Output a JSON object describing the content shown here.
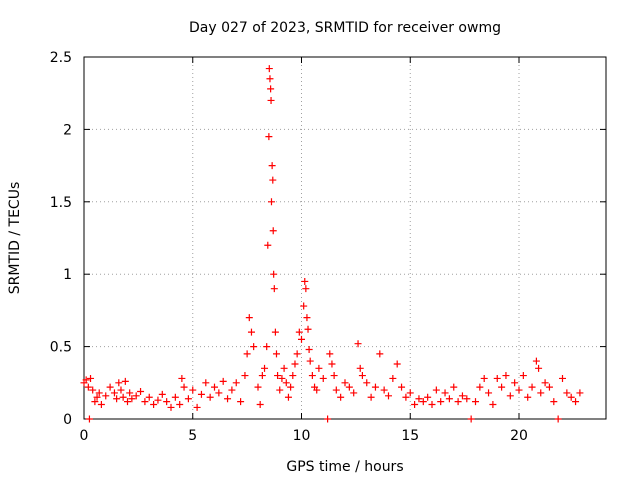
{
  "chart_data": {
    "type": "scatter",
    "title": "Day 027 of 2023, SRMTID for receiver owmg",
    "xlabel": "GPS time / hours",
    "ylabel": "SRMTID / TECUs",
    "xlim": [
      0,
      24
    ],
    "ylim": [
      0,
      2.5
    ],
    "xticks": [
      0,
      5,
      10,
      15,
      20
    ],
    "xtick_labels": [
      "0",
      "5",
      "10",
      "15",
      "20"
    ],
    "yticks": [
      0,
      0.5,
      1,
      1.5,
      2,
      2.5
    ],
    "ytick_labels": [
      "0",
      "0.5",
      "1",
      "1.5",
      "2",
      "2.5"
    ],
    "grid": true,
    "marker": "+",
    "series": [
      {
        "name": "SRMTID",
        "color": "#ff0000",
        "x": [
          0.0,
          0.1,
          0.2,
          0.25,
          0.3,
          0.4,
          0.5,
          0.6,
          0.7,
          0.8,
          1.0,
          1.2,
          1.4,
          1.5,
          1.6,
          1.7,
          1.8,
          1.9,
          2.0,
          2.1,
          2.2,
          2.4,
          2.6,
          2.8,
          3.0,
          3.2,
          3.4,
          3.6,
          3.8,
          4.0,
          4.2,
          4.4,
          4.5,
          4.6,
          4.8,
          5.0,
          5.2,
          5.4,
          5.6,
          5.8,
          6.0,
          6.2,
          6.4,
          6.6,
          6.8,
          7.0,
          7.2,
          7.4,
          7.5,
          7.6,
          7.7,
          7.8,
          8.0,
          8.1,
          8.2,
          8.3,
          8.4,
          8.45,
          8.5,
          8.52,
          8.55,
          8.58,
          8.6,
          8.62,
          8.65,
          8.68,
          8.7,
          8.72,
          8.75,
          8.8,
          8.85,
          8.9,
          9.0,
          9.1,
          9.2,
          9.3,
          9.4,
          9.5,
          9.6,
          9.7,
          9.8,
          9.9,
          10.0,
          10.1,
          10.15,
          10.2,
          10.25,
          10.3,
          10.35,
          10.4,
          10.5,
          10.6,
          10.7,
          10.8,
          11.0,
          11.2,
          11.3,
          11.4,
          11.5,
          11.6,
          11.8,
          12.0,
          12.2,
          12.4,
          12.6,
          12.7,
          12.8,
          13.0,
          13.2,
          13.4,
          13.6,
          13.8,
          14.0,
          14.2,
          14.4,
          14.6,
          14.8,
          15.0,
          15.2,
          15.4,
          15.6,
          15.8,
          16.0,
          16.2,
          16.4,
          16.6,
          16.8,
          17.0,
          17.2,
          17.4,
          17.6,
          17.8,
          18.0,
          18.2,
          18.4,
          18.6,
          18.8,
          19.0,
          19.2,
          19.4,
          19.6,
          19.8,
          20.0,
          20.2,
          20.4,
          20.6,
          20.8,
          20.9,
          21.0,
          21.2,
          21.4,
          21.6,
          21.8,
          22.0,
          22.2,
          22.4,
          22.6,
          22.8
        ],
        "y": [
          0.25,
          0.27,
          0.22,
          0.0,
          0.28,
          0.2,
          0.12,
          0.15,
          0.18,
          0.1,
          0.16,
          0.22,
          0.18,
          0.14,
          0.25,
          0.2,
          0.15,
          0.26,
          0.12,
          0.18,
          0.14,
          0.16,
          0.19,
          0.12,
          0.15,
          0.1,
          0.13,
          0.17,
          0.12,
          0.08,
          0.15,
          0.1,
          0.28,
          0.22,
          0.14,
          0.2,
          0.08,
          0.17,
          0.25,
          0.15,
          0.22,
          0.18,
          0.26,
          0.14,
          0.2,
          0.25,
          0.12,
          0.3,
          0.45,
          0.7,
          0.6,
          0.5,
          0.22,
          0.1,
          0.3,
          0.35,
          0.5,
          1.2,
          1.95,
          2.42,
          2.35,
          2.28,
          2.2,
          1.5,
          1.75,
          1.65,
          1.3,
          1.0,
          0.9,
          0.6,
          0.45,
          0.3,
          0.2,
          0.28,
          0.35,
          0.25,
          0.15,
          0.22,
          0.3,
          0.38,
          0.45,
          0.6,
          0.55,
          0.78,
          0.95,
          0.9,
          0.7,
          0.62,
          0.48,
          0.4,
          0.3,
          0.22,
          0.2,
          0.35,
          0.28,
          0.0,
          0.45,
          0.38,
          0.3,
          0.2,
          0.15,
          0.25,
          0.22,
          0.18,
          0.52,
          0.35,
          0.3,
          0.25,
          0.15,
          0.22,
          0.45,
          0.2,
          0.16,
          0.28,
          0.38,
          0.22,
          0.15,
          0.18,
          0.1,
          0.14,
          0.12,
          0.15,
          0.1,
          0.2,
          0.12,
          0.18,
          0.14,
          0.22,
          0.12,
          0.16,
          0.14,
          0.0,
          0.12,
          0.22,
          0.28,
          0.18,
          0.1,
          0.28,
          0.22,
          0.3,
          0.16,
          0.25,
          0.2,
          0.3,
          0.15,
          0.22,
          0.4,
          0.35,
          0.18,
          0.25,
          0.22,
          0.12,
          0.0,
          0.28,
          0.18,
          0.15,
          0.12,
          0.18
        ]
      }
    ]
  }
}
